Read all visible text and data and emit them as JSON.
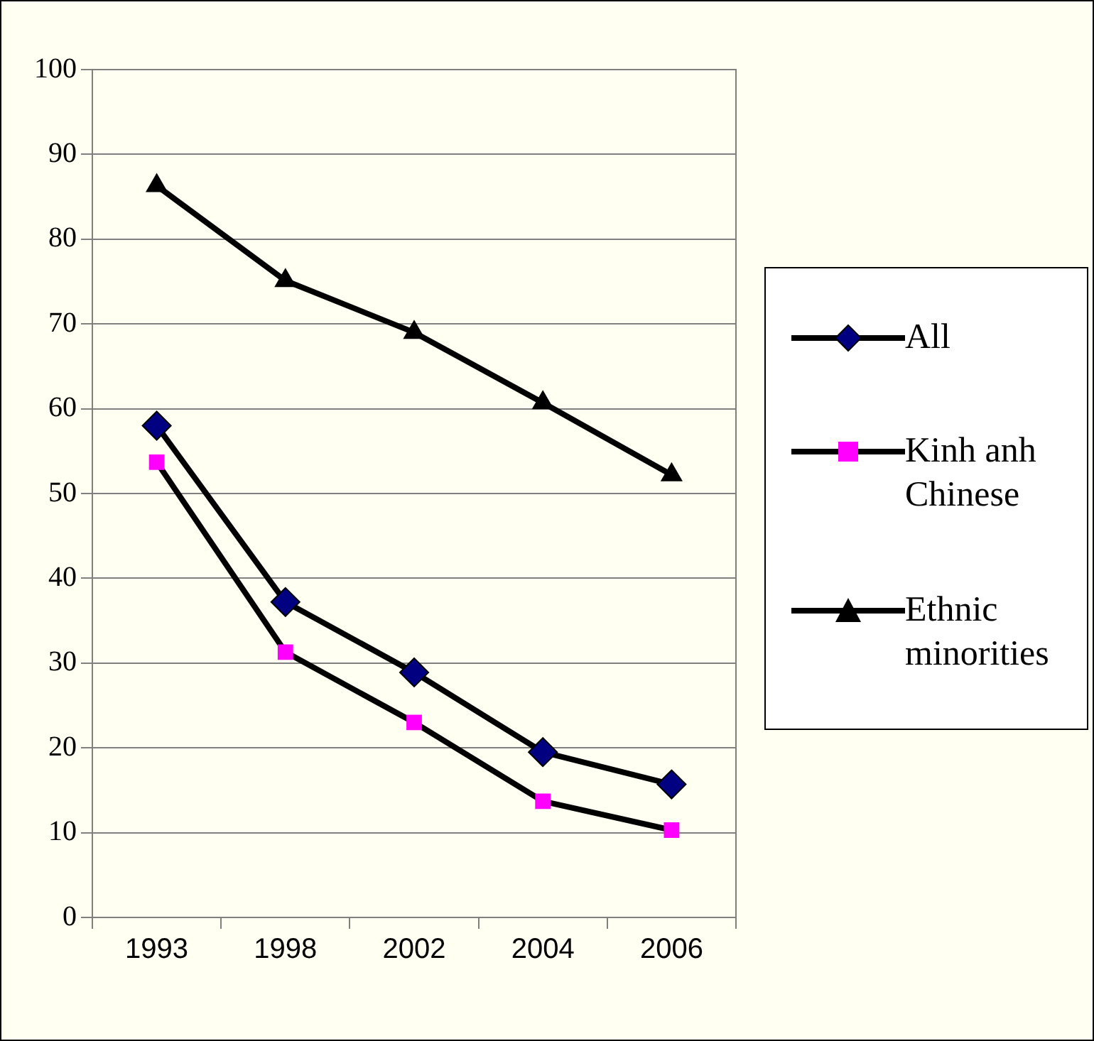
{
  "chart_data": {
    "type": "line",
    "categories": [
      "1993",
      "1998",
      "2002",
      "2004",
      "2006"
    ],
    "series": [
      {
        "name": "All",
        "color": "#000080",
        "marker": "diamond",
        "values": [
          58,
          37.2,
          28.9,
          19.5,
          15.7
        ]
      },
      {
        "name": "Kinh anh Chinese",
        "color": "#ff00ff",
        "marker": "square",
        "values": [
          53.7,
          31.3,
          23,
          13.7,
          10.3
        ]
      },
      {
        "name": "Ethnic minorities",
        "color": "#000000",
        "marker": "triangle",
        "values": [
          86.3,
          75.1,
          69,
          60.7,
          52.2
        ]
      }
    ],
    "ylim": [
      0,
      100
    ],
    "yticks": [
      0,
      10,
      20,
      30,
      40,
      50,
      60,
      70,
      80,
      90,
      100
    ],
    "grid": "y",
    "legend": "right"
  }
}
